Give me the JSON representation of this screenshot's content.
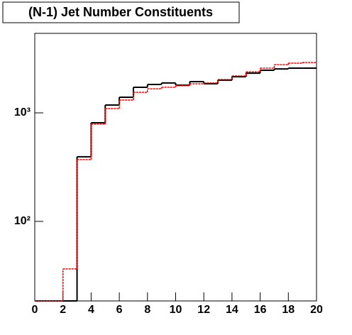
{
  "chart_data": {
    "type": "histogram",
    "title": "(N-1) Jet Number Constituents",
    "bins": [
      0,
      1,
      2,
      3,
      4,
      5,
      6,
      7,
      8,
      9,
      10,
      11,
      12,
      13,
      14,
      15,
      16,
      17,
      18,
      19,
      20
    ],
    "series": [
      {
        "color": "#000000",
        "values": [
          18.5,
          18.5,
          18.5,
          394,
          810,
          1180,
          1393,
          1719,
          1825,
          1885,
          1799,
          1941,
          1854,
          1998,
          2153,
          2321,
          2467,
          2540,
          2583,
          2583
        ]
      },
      {
        "color": "#ff0000",
        "values": [
          18.5,
          18.5,
          36.5,
          371,
          786,
          1095,
          1312,
          1548,
          1667,
          1719,
          1780,
          1854,
          1885,
          2030,
          2190,
          2384,
          2583,
          2780,
          2870,
          2912
        ]
      }
    ],
    "xlim": [
      0,
      20
    ],
    "xticks": [
      0,
      2,
      4,
      6,
      8,
      10,
      12,
      14,
      16,
      18,
      20
    ],
    "ylim": [
      18.5,
      5400
    ],
    "yticks": [
      {
        "value": 100,
        "label": "10²"
      },
      {
        "value": 1000,
        "label": "10³"
      }
    ],
    "log_y": true
  }
}
